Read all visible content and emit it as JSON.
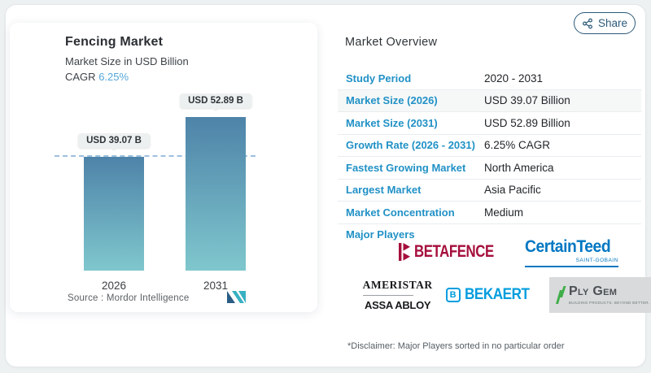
{
  "share": {
    "label": "Share"
  },
  "chart": {
    "title": "Fencing Market",
    "subtitle": "Market Size in USD Billion",
    "cagr_label": "CAGR",
    "cagr_value": "6.25%",
    "source_label": "Source :  Mordor Intelligence"
  },
  "chart_data": {
    "type": "bar",
    "categories": [
      "2026",
      "2031"
    ],
    "values": [
      39.07,
      52.89
    ],
    "bar_labels": [
      "USD 39.07 B",
      "USD 52.89 B"
    ],
    "title": "Fencing Market",
    "subtitle": "Market Size in USD Billion",
    "cagr": "6.25%",
    "ylim": [
      0,
      52.89
    ],
    "reference_line": 39.07,
    "grid": false,
    "bar_color_top": "#4e83a9",
    "bar_color_bottom": "#7fc7cd",
    "source": "Source : Mordor Intelligence"
  },
  "overview": {
    "title": "Market Overview",
    "rows": [
      {
        "label": "Study Period",
        "value": "2020 - 2031"
      },
      {
        "label": "Market Size (2026)",
        "value": "USD 39.07 Billion"
      },
      {
        "label": "Market Size (2031)",
        "value": "USD 52.89 Billion"
      },
      {
        "label": "Growth Rate (2026 - 2031)",
        "value": "6.25% CAGR"
      },
      {
        "label": "Fastest Growing Market",
        "value": "North America"
      },
      {
        "label": "Largest Market",
        "value": "Asia Pacific"
      },
      {
        "label": "Market Concentration",
        "value": "Medium"
      }
    ],
    "major_players_label": "Major Players",
    "logos": {
      "betafence": "BETAFENCE",
      "certainteed": "CertainTeed",
      "certainteed_sub": "SAINT-GOBAIN",
      "ameristar": "AMERISTAR",
      "assa_abloy": "ASSA ABLOY",
      "bekaert": "BEKAERT",
      "bekaert_icon_letter": "B",
      "plygem": "Ply Gem",
      "plygem_tagline": "BUILDING PRODUCTS. BEYOND BETTER."
    },
    "disclaimer": "*Disclaimer: Major Players sorted in no particular order"
  },
  "colors": {
    "accent_blue": "#2191c6",
    "cagr_blue": "#56a7d8",
    "share_teal": "#2c5a7a",
    "betafence_red": "#a50f3c",
    "certainteed_blue": "#0077c2",
    "bekaert_blue": "#009dde",
    "plygem_green": "#3fae49"
  }
}
